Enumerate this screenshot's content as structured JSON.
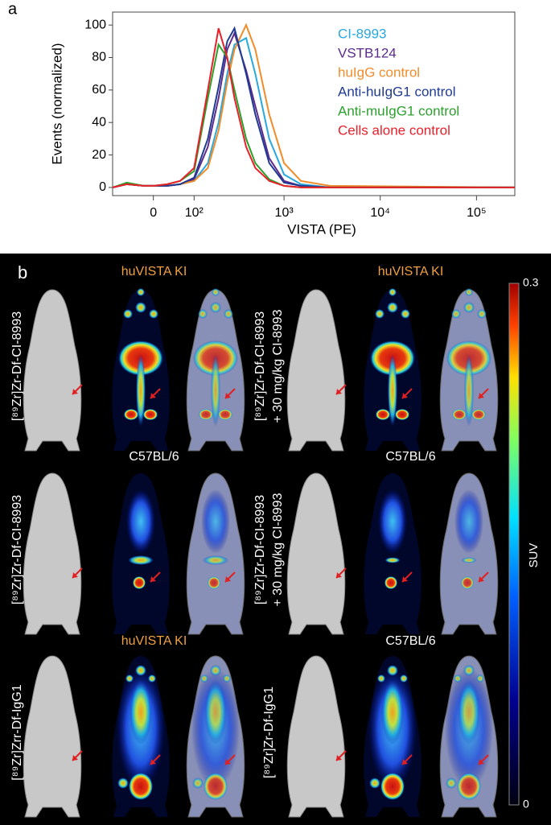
{
  "chart_data": {
    "type": "line",
    "panel_label": "a",
    "y_label": "Events (normalized)",
    "x_label": "VISTA (PE)",
    "x": [
      -100,
      -60,
      -20,
      0,
      30,
      60,
      100,
      150,
      200,
      250,
      300,
      400,
      500,
      700,
      1000,
      1500,
      3000,
      250000
    ],
    "series": [
      {
        "name": "CI-8993",
        "color": "#29a8e0",
        "values": [
          0,
          2,
          1,
          1,
          1,
          2,
          4,
          15,
          40,
          70,
          88,
          92,
          70,
          30,
          8,
          2,
          0,
          0
        ]
      },
      {
        "name": "VSTB124",
        "color": "#5b2c8c",
        "values": [
          0,
          2,
          1,
          1,
          1,
          2,
          5,
          25,
          55,
          85,
          95,
          72,
          50,
          18,
          4,
          1,
          0,
          0
        ]
      },
      {
        "name": "huIgG control",
        "color": "#f08c2a",
        "values": [
          0,
          2,
          1,
          1,
          1,
          2,
          4,
          12,
          35,
          65,
          85,
          100,
          85,
          45,
          15,
          4,
          1,
          0
        ]
      },
      {
        "name": "Anti-huIgG1 control",
        "color": "#1f3a93",
        "values": [
          0,
          2,
          1,
          1,
          1,
          2,
          6,
          30,
          62,
          90,
          98,
          70,
          45,
          15,
          3,
          1,
          0,
          0
        ]
      },
      {
        "name": "Anti-muIgG1 control",
        "color": "#2ca02c",
        "values": [
          0,
          3,
          1,
          1,
          2,
          4,
          10,
          55,
          88,
          80,
          60,
          30,
          15,
          5,
          1,
          0,
          0,
          0
        ]
      },
      {
        "name": "Cells alone control",
        "color": "#e8202a",
        "values": [
          0,
          2,
          1,
          1,
          2,
          4,
          12,
          60,
          98,
          80,
          55,
          25,
          12,
          4,
          1,
          0,
          0,
          0
        ]
      }
    ],
    "xlim": [
      -100,
      250000
    ],
    "xticks": [
      0,
      {
        "value": 100,
        "label": "10²"
      },
      {
        "value": 1000,
        "label": "10³"
      },
      {
        "value": 10000,
        "label": "10⁴"
      },
      {
        "value": 100000,
        "label": "10⁵"
      }
    ],
    "ylim": [
      -5,
      108
    ],
    "yticks": [
      0,
      20,
      40,
      60,
      80,
      100
    ],
    "grid": false
  },
  "panel_b": {
    "label": "b",
    "rows": [
      {
        "left_label": [
          "[⁸⁹Zr]Zr-Df-CI-8993"
        ],
        "left_heading": "huVISTA KI",
        "right_label": [
          "[⁸⁹Zr]Zr-Df-CI-8993",
          "+ 30 mg/kg CI-8993"
        ],
        "right_heading": "huVISTA KI"
      },
      {
        "left_label": [
          "[⁸⁹Zr]Zr-Df-CI-8993"
        ],
        "left_heading": "C57BL/6",
        "right_label": [
          "[⁸⁹Zr]Zr-Df-CI-8993",
          "+ 30 mg/kg CI-8993"
        ],
        "right_heading": "C57BL/6"
      },
      {
        "left_label": [
          "[⁸⁹Zr]Zrr-Df-IgG1"
        ],
        "left_heading": "huVISTA KI",
        "right_label": [
          "[⁸⁹Zr]Zr-Df-IgG1"
        ],
        "right_heading": "C57BL/6"
      }
    ],
    "colorbar": {
      "label": "SUV",
      "ticks": [
        0,
        0.3
      ]
    }
  }
}
